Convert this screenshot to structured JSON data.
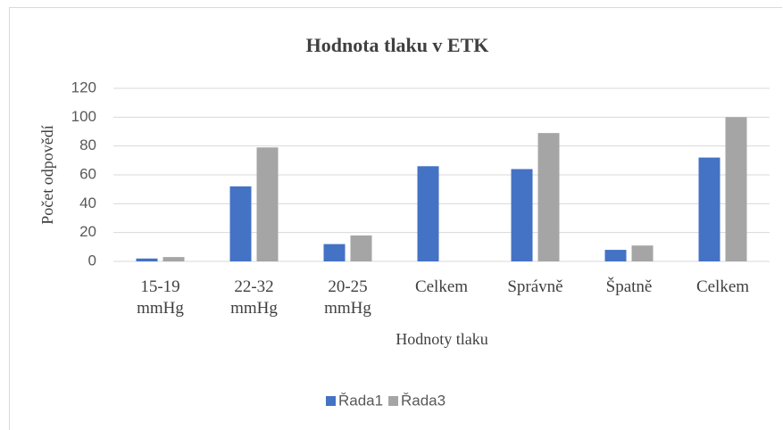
{
  "chart_data": {
    "type": "bar",
    "title": "Hodnota tlaku v ETK",
    "x_label": "Hodnoty tlaku",
    "y_label": "Počet odpovědí",
    "categories": [
      "15-19 mmHg",
      "22-32 mmHg",
      "20-25 mmHg",
      "Celkem",
      "Správně",
      "Špatně",
      "Celkem"
    ],
    "series": [
      {
        "name": "Řada1",
        "color": "#4472c4",
        "values": [
          2,
          52,
          12,
          66,
          64,
          8,
          72
        ]
      },
      {
        "name": "Řada3",
        "color": "#a5a5a5",
        "values": [
          3,
          79,
          18,
          null,
          89,
          11,
          100
        ]
      }
    ],
    "ylim": [
      0,
      120
    ],
    "yticks": [
      0,
      20,
      40,
      60,
      80,
      100,
      120
    ],
    "grid": true,
    "legend": "bottom"
  }
}
